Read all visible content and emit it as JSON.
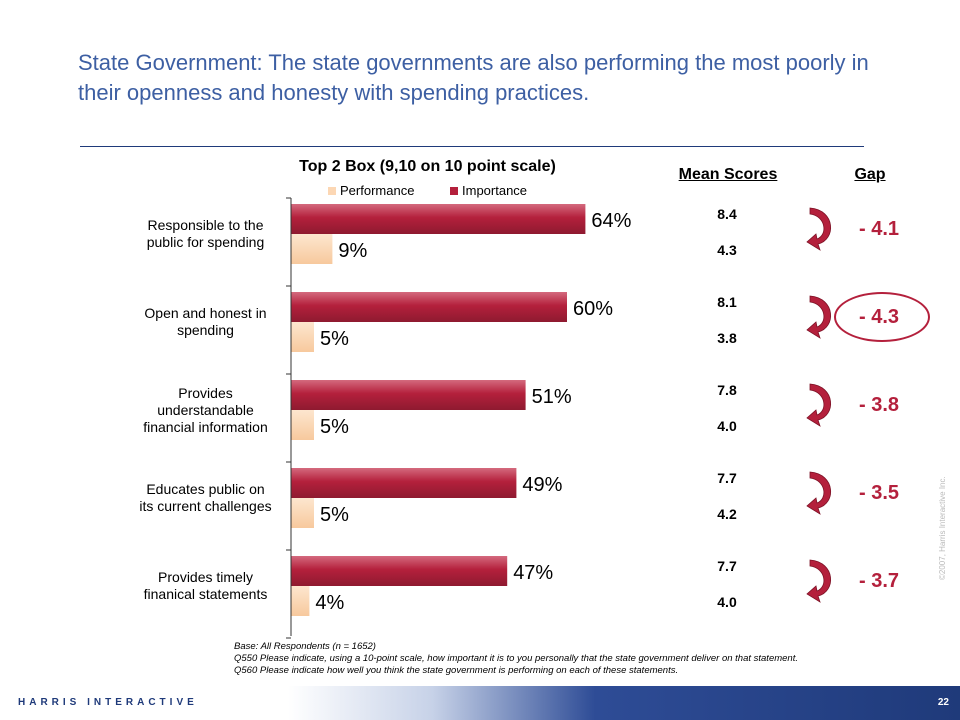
{
  "title": "State Government: The state governments are also performing the most poorly in their openness and honesty with spending practices.",
  "chart_data": {
    "type": "bar",
    "orientation": "horizontal",
    "title": "Top 2 Box (9,10 on 10 point scale)",
    "categories": [
      [
        "Responsible to the",
        "public for spending"
      ],
      [
        "Open and honest in",
        "spending"
      ],
      [
        "Provides",
        "understandable",
        "financial information"
      ],
      [
        "Educates public on",
        "its current challenges"
      ],
      [
        "Provides timely",
        "finanical statements"
      ]
    ],
    "series": [
      {
        "name": "Performance",
        "values": [
          9,
          5,
          5,
          5,
          4
        ],
        "labels": [
          "9%",
          "5%",
          "5%",
          "5%",
          "4%"
        ],
        "color": "#fcd7b4"
      },
      {
        "name": "Importance",
        "values": [
          64,
          60,
          51,
          49,
          47
        ],
        "labels": [
          "64%",
          "60%",
          "51%",
          "49%",
          "47%"
        ],
        "color": "#b4203c"
      }
    ],
    "xlim": [
      0,
      100
    ],
    "legend": "top"
  },
  "mean_scores": {
    "header": "Mean Scores",
    "importance": [
      "8.4",
      "8.1",
      "7.8",
      "7.7",
      "7.7"
    ],
    "performance": [
      "4.3",
      "3.8",
      "4.0",
      "4.2",
      "4.0"
    ]
  },
  "gap": {
    "header": "Gap",
    "values": [
      "- 4.1",
      "- 4.3",
      "- 3.8",
      "- 3.5",
      "- 3.7"
    ],
    "highlighted_index": 1
  },
  "footnote": {
    "base": "Base: All Respondents (n = 1652)",
    "q550": "Q550 Please indicate, using a 10-point scale, how important it is to you personally that the state government deliver on that statement.",
    "q560": "Q560 Please indicate how well you think the state government is performing on each of these statements."
  },
  "copyright": "©2007, Harris Interactive Inc.",
  "brand": "HARRIS INTERACTIVE",
  "page_number": "22",
  "colors": {
    "accent": "#b4203c",
    "title": "#3d5fa3",
    "brand": "#1f3a7a"
  }
}
